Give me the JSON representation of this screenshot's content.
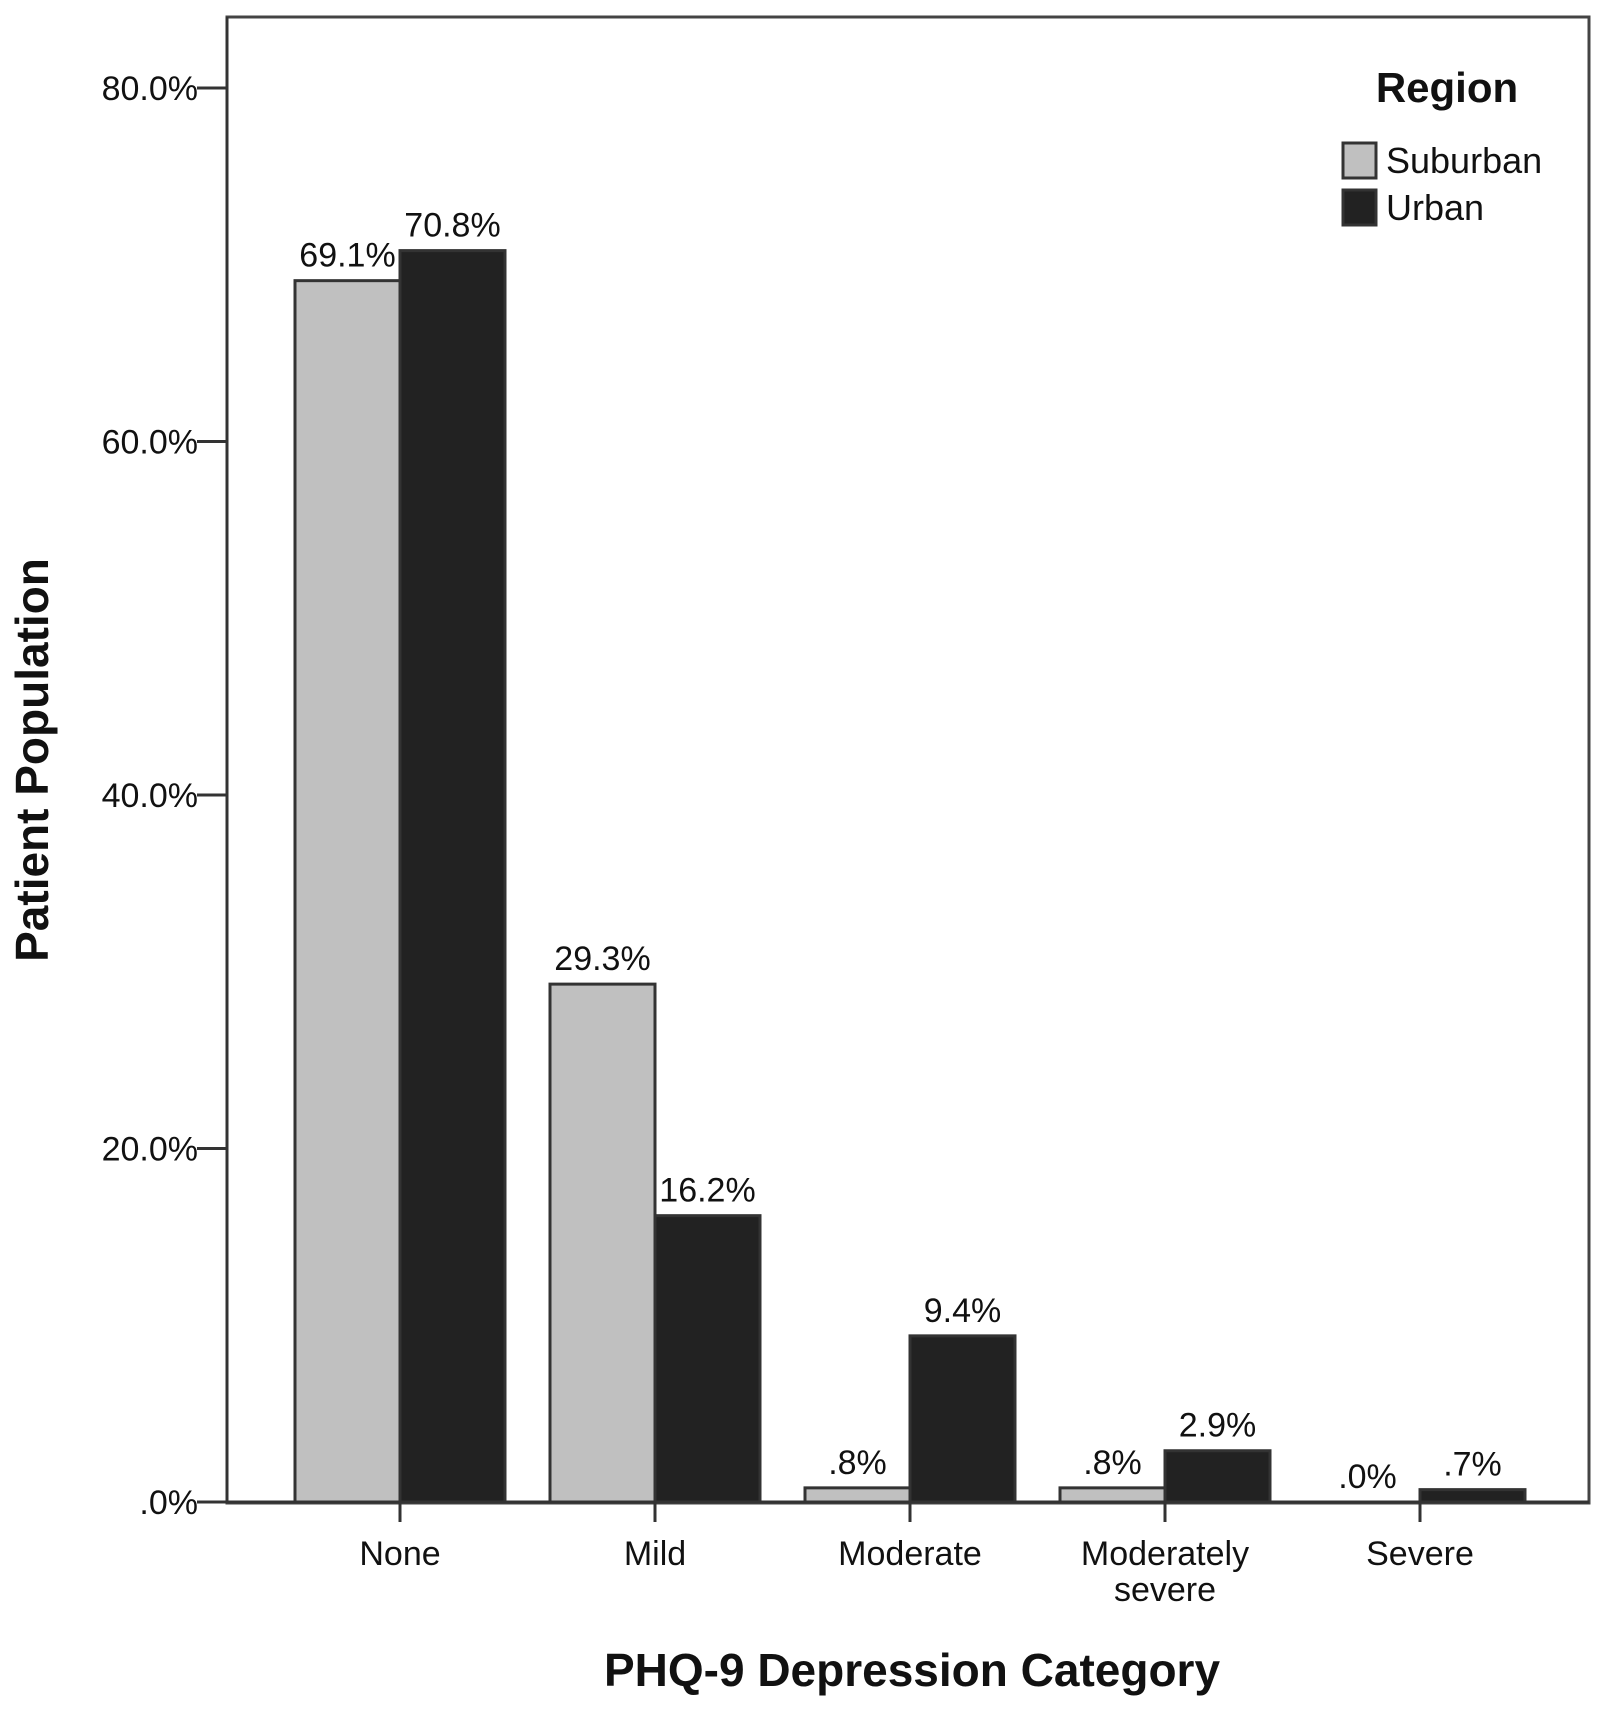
{
  "chart_data": {
    "type": "bar",
    "title": "",
    "xlabel": "PHQ-9 Depression Category",
    "ylabel": "Patient Population",
    "categories": [
      "None",
      "Mild",
      "Moderate",
      "Moderately severe",
      "Severe"
    ],
    "series": [
      {
        "name": "Suburban",
        "color": "#c0c0c0",
        "values": [
          69.1,
          29.3,
          0.8,
          0.8,
          0.0
        ],
        "labels": [
          "69.1%",
          "29.3%",
          ".8%",
          ".8%",
          ".0%"
        ]
      },
      {
        "name": "Urban",
        "color": "#222222",
        "values": [
          70.8,
          16.2,
          9.4,
          2.9,
          0.7
        ],
        "labels": [
          "70.8%",
          "16.2%",
          "9.4%",
          "2.9%",
          ".7%"
        ]
      }
    ],
    "ylim": [
      0,
      80
    ],
    "yticks": [
      0,
      20,
      40,
      60,
      80
    ],
    "ytick_labels": [
      ".0%",
      "20.0%",
      "40.0%",
      "60.0%",
      "80.0%"
    ],
    "grid": false,
    "legend": {
      "title": "Region",
      "placement": "top-right"
    }
  }
}
